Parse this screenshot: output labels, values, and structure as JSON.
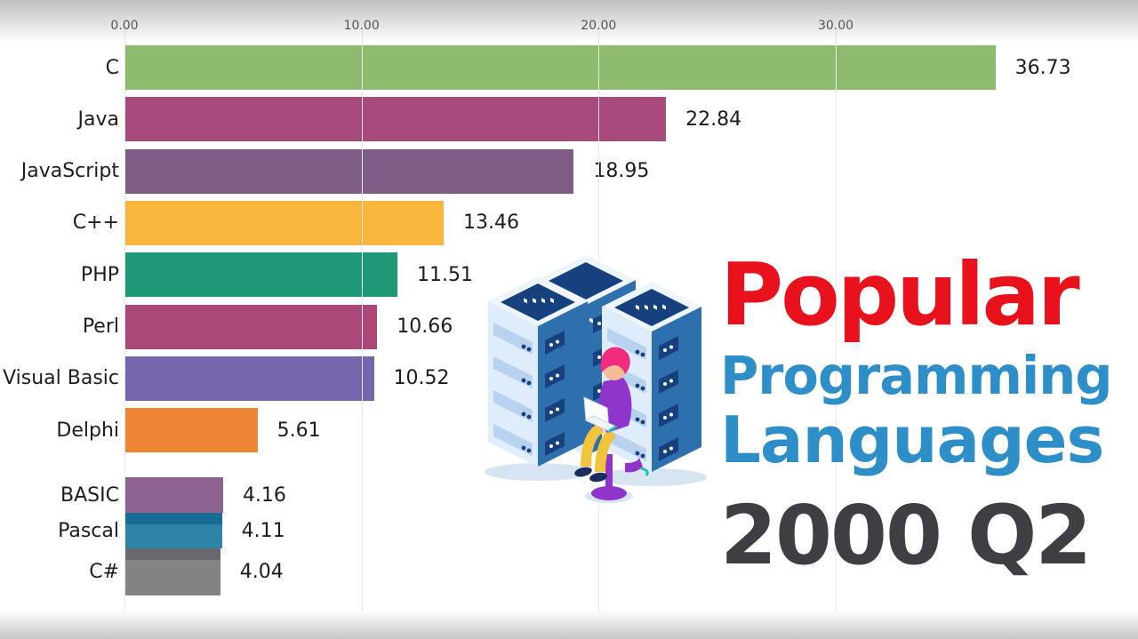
{
  "frame": {
    "background": "#ffffff",
    "gridline_color": "#e8e8e8",
    "tick_color": "#4a4a4a",
    "label_color": "#1d1d1d"
  },
  "chart_data": {
    "type": "bar",
    "orientation": "horizontal",
    "title": "Popular Programming Languages",
    "period": "2000 Q2",
    "axis": {
      "tick_values": [
        0,
        10,
        20,
        30
      ],
      "tick_labels": [
        "0.00",
        "10.00",
        "20.00",
        "30.00"
      ],
      "range": [
        0,
        42.7
      ],
      "grid": true,
      "position": "top"
    },
    "bars": [
      {
        "label": "C",
        "value": 36.73,
        "display": "36.73",
        "color": "#8ebb6e"
      },
      {
        "label": "Java",
        "value": 22.84,
        "display": "22.84",
        "color": "#a94a7d"
      },
      {
        "label": "JavaScript",
        "value": 18.95,
        "display": "18.95",
        "color": "#7d5c86"
      },
      {
        "label": "C++",
        "value": 13.46,
        "display": "13.46",
        "color": "#f8b63d"
      },
      {
        "label": "PHP",
        "value": 11.51,
        "display": "11.51",
        "color": "#1f9878"
      },
      {
        "label": "Perl",
        "value": 10.66,
        "display": "10.66",
        "color": "#ab4878"
      },
      {
        "label": "Visual Basic",
        "value": 10.52,
        "display": "10.52",
        "color": "#7565ad"
      },
      {
        "label": "Delphi",
        "value": 5.61,
        "display": "5.61",
        "color": "#ee8634"
      },
      {
        "label": "BASIC",
        "value": 4.16,
        "display": "4.16",
        "color": "#8c6390"
      },
      {
        "label": "Pascal",
        "value": 4.11,
        "display": "4.11",
        "color": "#2d83a8",
        "top_edge_color": "#1a6b93"
      },
      {
        "label": "C#",
        "value": 4.04,
        "display": "4.04",
        "color": "#838383",
        "top_edge_color": "#69696f"
      }
    ]
  },
  "title_block": {
    "line1": "Popular",
    "line2": "Programming",
    "line3": "Languages",
    "period": "2000 Q2",
    "red": "#e8111c",
    "blue": "#2e8fc8",
    "dark": "#3f3e43"
  },
  "illustration": {
    "name": "isometric-server-racks-with-developer",
    "colors": {
      "face_light": "#dfecfb",
      "face_top": "#eef5fe",
      "face_dark": "#2e6fae",
      "slot_light": "#b9d2ef",
      "panel_navy": "#16407e",
      "shadow": "#d7e4f2",
      "hair_pink": "#ef2c7e",
      "shirt_purple": "#8f35cc",
      "pants_yellow": "#f2c33c",
      "skin": "#f6bb97",
      "laptop_white": "#ffffff",
      "accent_teal": "#16c2b0"
    }
  }
}
